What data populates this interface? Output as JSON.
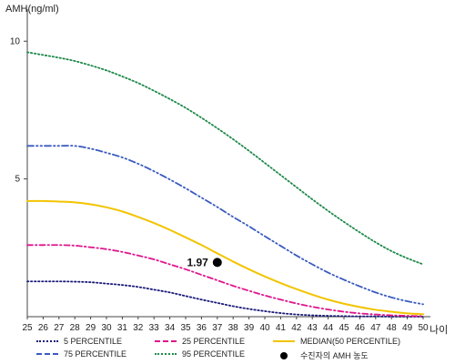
{
  "chart_data": {
    "type": "line",
    "ylabel": "AMH(ng/ml)",
    "xlabel": "나이",
    "xlim": [
      25,
      50
    ],
    "ylim": [
      0,
      11
    ],
    "y_ticks": [
      5,
      10
    ],
    "x": [
      25,
      26,
      27,
      28,
      29,
      30,
      31,
      32,
      33,
      34,
      35,
      36,
      37,
      38,
      39,
      40,
      41,
      42,
      43,
      44,
      45,
      46,
      47,
      48,
      49,
      50
    ],
    "series": [
      {
        "name": "5 PERCENTILE",
        "color": "#1a1a7a",
        "dash": "dotted",
        "values": [
          1.28,
          1.28,
          1.28,
          1.27,
          1.25,
          1.2,
          1.15,
          1.08,
          0.98,
          0.88,
          0.75,
          0.62,
          0.5,
          0.38,
          0.28,
          0.2,
          0.13,
          0.08,
          0.05,
          0.03,
          0.02,
          0.01,
          0.01,
          0.0,
          0.0,
          0.0
        ]
      },
      {
        "name": "25 PERCENTILE",
        "color": "#e0148c",
        "dash": "dashdot",
        "values": [
          2.6,
          2.6,
          2.6,
          2.58,
          2.52,
          2.45,
          2.35,
          2.22,
          2.08,
          1.9,
          1.72,
          1.52,
          1.32,
          1.12,
          0.94,
          0.77,
          0.62,
          0.48,
          0.36,
          0.26,
          0.18,
          0.12,
          0.08,
          0.05,
          0.03,
          0.02
        ]
      },
      {
        "name": "MEDIAN(50 PERCENTILE)",
        "color": "#f2c400",
        "dash": "solid",
        "values": [
          4.2,
          4.2,
          4.18,
          4.15,
          4.08,
          3.97,
          3.82,
          3.62,
          3.4,
          3.15,
          2.88,
          2.6,
          2.3,
          2.0,
          1.72,
          1.46,
          1.22,
          1.0,
          0.8,
          0.62,
          0.47,
          0.35,
          0.25,
          0.18,
          0.12,
          0.09
        ]
      },
      {
        "name": "75 PERCENTILE",
        "color": "#3a5bbf",
        "dash": "dashdotdot",
        "values": [
          6.2,
          6.2,
          6.2,
          6.2,
          6.1,
          5.95,
          5.78,
          5.55,
          5.28,
          4.98,
          4.66,
          4.32,
          3.98,
          3.62,
          3.28,
          2.92,
          2.57,
          2.22,
          1.9,
          1.6,
          1.34,
          1.1,
          0.88,
          0.7,
          0.56,
          0.45
        ]
      },
      {
        "name": "95 PERCENTILE",
        "color": "#1e8a4a",
        "dash": "dotted",
        "values": [
          9.6,
          9.5,
          9.4,
          9.28,
          9.12,
          8.94,
          8.72,
          8.48,
          8.2,
          7.9,
          7.58,
          7.22,
          6.84,
          6.44,
          6.02,
          5.58,
          5.14,
          4.7,
          4.26,
          3.84,
          3.44,
          3.06,
          2.7,
          2.38,
          2.12,
          1.9
        ]
      }
    ],
    "highlight": {
      "label": "수진자의 AMH 농도",
      "x": 37,
      "y": 1.97,
      "value_text": "1.97",
      "color": "#000000"
    }
  },
  "legend": {
    "items": [
      {
        "label": "5 PERCENTILE",
        "color": "#1a1a7a",
        "style": "dotted"
      },
      {
        "label": "25 PERCENTILE",
        "color": "#e0148c",
        "style": "dashed"
      },
      {
        "label": "MEDIAN(50 PERCENTILE)",
        "color": "#f2c400",
        "style": "solid"
      },
      {
        "label": "75 PERCENTILE",
        "color": "#3a5bbf",
        "style": "dashed"
      },
      {
        "label": "95 PERCENTILE",
        "color": "#1e8a4a",
        "style": "dotted"
      },
      {
        "label": "수진자의 AMH 농도",
        "color": "#000000",
        "style": "dot"
      }
    ]
  }
}
